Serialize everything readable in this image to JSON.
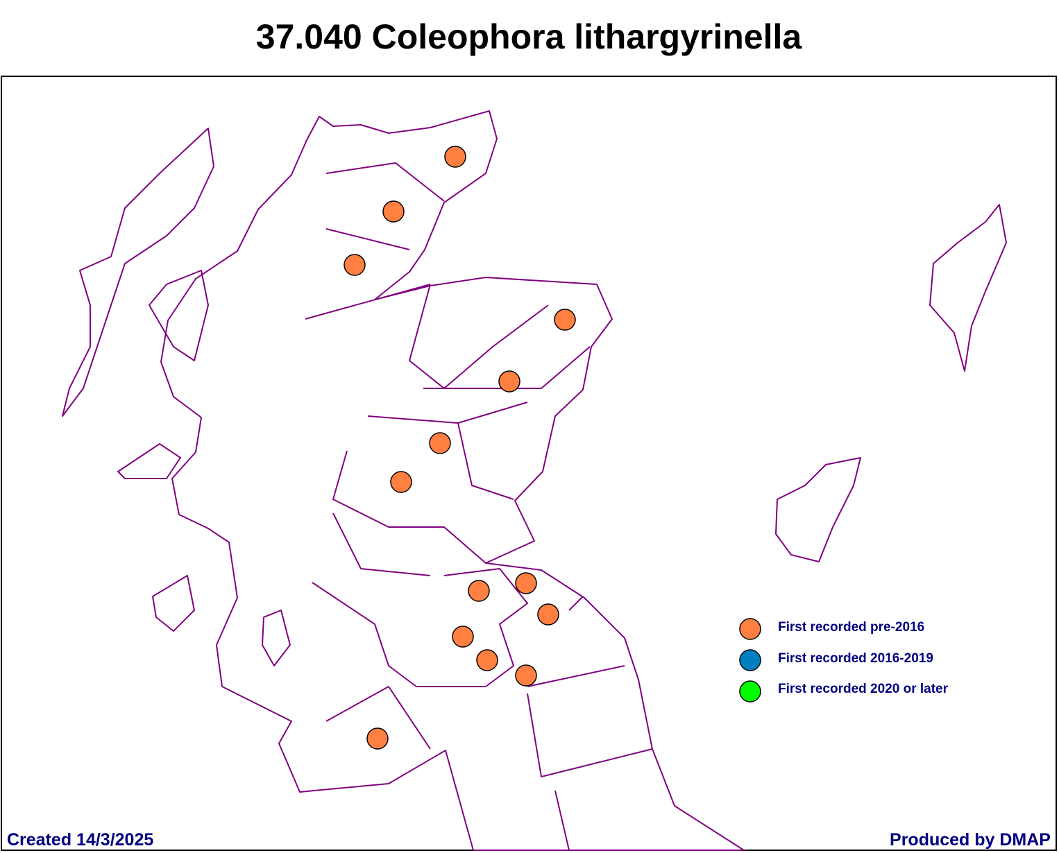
{
  "title": "37.040 Coleophora lithargyrinella",
  "legend": {
    "items": [
      "First recorded pre-2016",
      "First recorded 2016-2019",
      "First recorded 2020 or later"
    ]
  },
  "footer": {
    "created": "Created 14/3/2025",
    "produced": "Produced by DMAP"
  }
}
